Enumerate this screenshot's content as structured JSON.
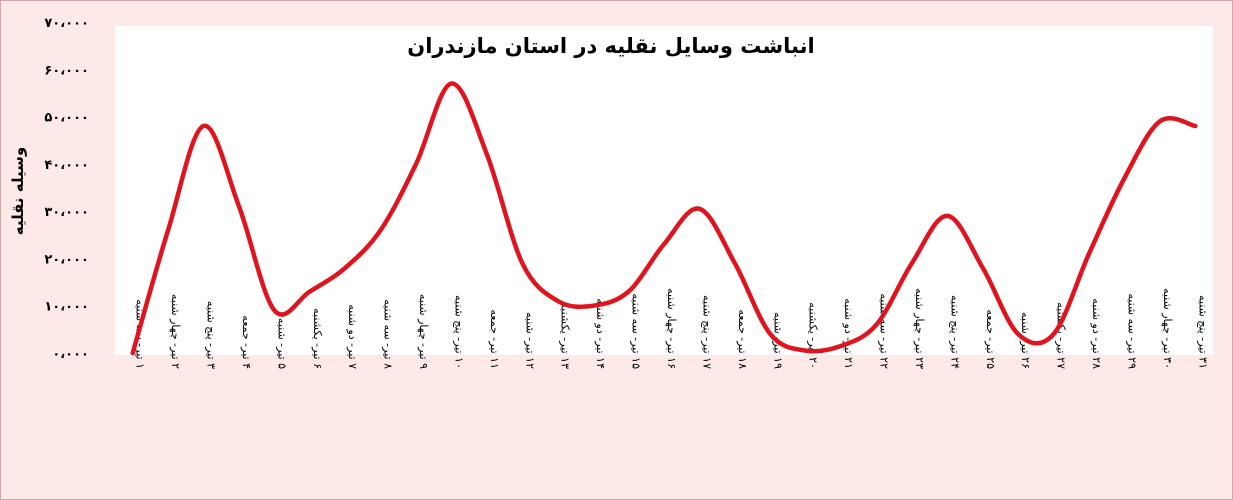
{
  "chart_data": {
    "type": "line",
    "title": "انباشت وسایل نقلیه در استان مازندران",
    "ylabel": "وسیله نقلیه",
    "xlabel": "",
    "ylim": [
      0,
      70000
    ],
    "y_tick_labels": [
      "۰،۰۰۰",
      "۱۰،۰۰۰",
      "۲۰،۰۰۰",
      "۳۰،۰۰۰",
      "۴۰،۰۰۰",
      "۵۰،۰۰۰",
      "۶۰،۰۰۰",
      "۷۰،۰۰۰"
    ],
    "line_color": "#e0141e",
    "grid": false,
    "legend": "none",
    "categories": [
      "۱ تیر- سه شنبه",
      "۲ تیر- چهار شنبه",
      "۳ تیر- پنج شنبه",
      "۴ تیر- جمعه",
      "۵ تیر- شنبه",
      "۶ تیر- یکشنبه",
      "۷ تیر- دو شنبه",
      "۸ تیر- سه شنبه",
      "۹ تیر- چهار شنبه",
      "۱۰ تیر- پنج شنبه",
      "۱۱ تیر- جمعه",
      "۱۲ تیر- شنبه",
      "۱۳ تیر- یکشنبه",
      "۱۴ تیر- دو شنبه",
      "۱۵ تیر- سه شنبه",
      "۱۶ تیر- چهار شنبه",
      "۱۷ تیر- پنج شنبه",
      "۱۸ تیر- جمعه",
      "۱۹ تیر- شنبه",
      "۲۰ تیر- یکشنبه",
      "۲۱ تیر- دو شنبه",
      "۲۲ تیر- سه شنبه",
      "۲۳ تیر- چهار شنبه",
      "۲۴ تیر- پنج شنبه",
      "۲۵ تیر- جمعه",
      "۲۶ تیر- شنبه",
      "۲۷ تیر- یکشنبه",
      "۲۸ تیر- دو شنبه",
      "۲۹ تیر- سه شنبه",
      "۳۰ تیر- چهار شنبه",
      "۳۱ تیر- پنج شنبه"
    ],
    "values": [
      0,
      26000,
      48000,
      31000,
      9000,
      13000,
      18000,
      26000,
      40000,
      57000,
      42000,
      19000,
      11000,
      10000,
      13000,
      23000,
      30500,
      19000,
      4000,
      500,
      1500,
      6000,
      19000,
      29000,
      18000,
      4000,
      4000,
      21000,
      37000,
      49000,
      48000
    ]
  }
}
